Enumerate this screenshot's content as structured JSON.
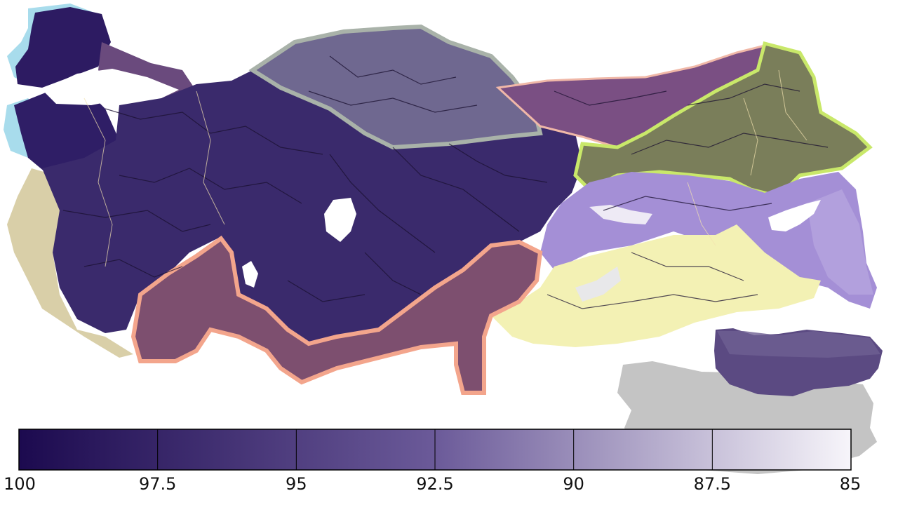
{
  "colors": {
    "ramp_start": "#1c0a4f",
    "ramp_end": "#f7f5fa",
    "west_coast": "#a8dcec",
    "aegean_coast": "#d9cfa8",
    "black_sea_coast": "#f0b8a8",
    "mediterranean_coast": "#f3a58c",
    "northeast_zone": "#7a7e5a",
    "northeast_edge": "#c9e86a",
    "east_zone": "#a48fd6",
    "southeast_zone": "#f3f1b4",
    "inset_gray": "#c4c4c4",
    "inset_purple": "#5b4a82"
  },
  "legend": {
    "ticks": [
      "100",
      "97.5",
      "95",
      "92.5",
      "90",
      "87.5",
      "85"
    ],
    "values": [
      100,
      97.5,
      95,
      92.5,
      90,
      87.5,
      85
    ]
  }
}
